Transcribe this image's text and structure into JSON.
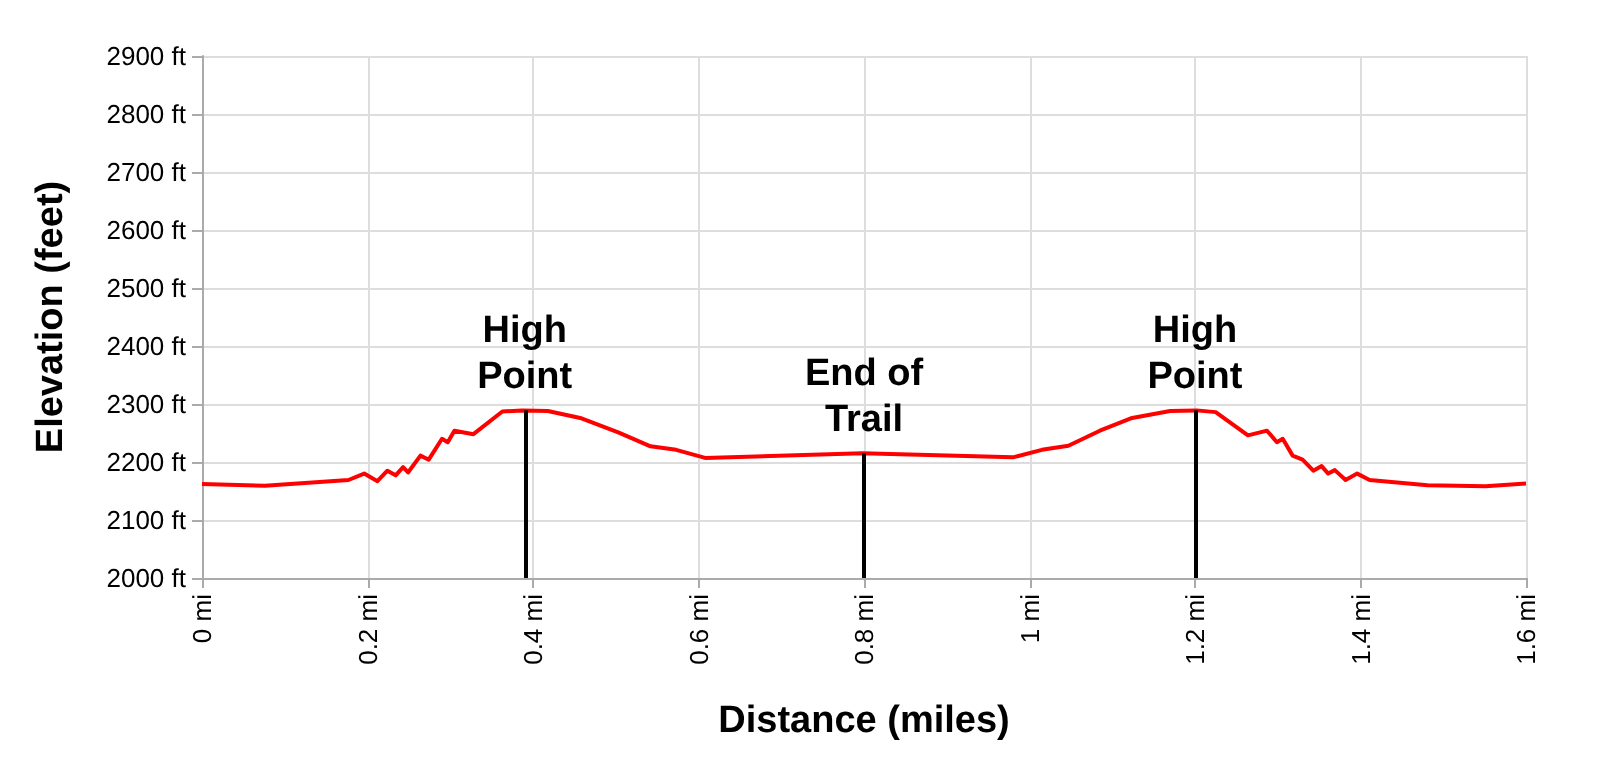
{
  "chart_data": {
    "type": "line",
    "xlabel": "Distance (miles)",
    "ylabel": "Elevation (feet)",
    "xlim": [
      0,
      1.6
    ],
    "ylim": [
      2000,
      2900
    ],
    "xticks": [
      {
        "value": 0,
        "label": "0 mi"
      },
      {
        "value": 0.2,
        "label": "0.2 mi"
      },
      {
        "value": 0.4,
        "label": "0.4 mi"
      },
      {
        "value": 0.6,
        "label": "0.6 mi"
      },
      {
        "value": 0.8,
        "label": "0.8 mi"
      },
      {
        "value": 1,
        "label": "1 mi"
      },
      {
        "value": 1.2,
        "label": "1.2 mi"
      },
      {
        "value": 1.4,
        "label": "1.4 mi"
      },
      {
        "value": 1.6,
        "label": "1.6 mi"
      }
    ],
    "yticks": [
      {
        "value": 2000,
        "label": "2000 ft"
      },
      {
        "value": 2100,
        "label": "2100 ft"
      },
      {
        "value": 2200,
        "label": "2200 ft"
      },
      {
        "value": 2300,
        "label": "2300 ft"
      },
      {
        "value": 2400,
        "label": "2400 ft"
      },
      {
        "value": 2500,
        "label": "2500 ft"
      },
      {
        "value": 2600,
        "label": "2600 ft"
      },
      {
        "value": 2700,
        "label": "2700 ft"
      },
      {
        "value": 2800,
        "label": "2800 ft"
      },
      {
        "value": 2900,
        "label": "2900 ft"
      }
    ],
    "grid": true,
    "marker": "none",
    "line_style": "solid",
    "x": [
      0,
      0.076,
      0.177,
      0.196,
      0.212,
      0.224,
      0.234,
      0.243,
      0.249,
      0.264,
      0.274,
      0.29,
      0.297,
      0.305,
      0.328,
      0.363,
      0.387,
      0.418,
      0.457,
      0.503,
      0.542,
      0.573,
      0.608,
      0.798,
      0.98,
      1.015,
      1.047,
      1.085,
      1.124,
      1.17,
      1.202,
      1.225,
      1.264,
      1.287,
      1.299,
      1.306,
      1.318,
      1.33,
      1.343,
      1.353,
      1.361,
      1.369,
      1.382,
      1.396,
      1.411,
      1.481,
      1.551,
      1.6
    ],
    "series": [
      {
        "color": "#ff0000",
        "values": [
          2162,
          2159,
          2169,
          2180,
          2167,
          2185,
          2177,
          2191,
          2182,
          2211,
          2204,
          2240,
          2234,
          2254,
          2248,
          2287,
          2289,
          2288,
          2276,
          2251,
          2227,
          2221,
          2207,
          2215,
          2208,
          2221,
          2228,
          2254,
          2276,
          2288,
          2289,
          2286,
          2246,
          2254,
          2234,
          2240,
          2211,
          2204,
          2185,
          2193,
          2180,
          2186,
          2169,
          2180,
          2169,
          2160,
          2158,
          2163
        ]
      }
    ],
    "annotations": [
      {
        "text": "High\nPoint",
        "x": 0.39,
        "y": 2289
      },
      {
        "text": "End of\nTrail",
        "x": 0.8,
        "y": 2215
      },
      {
        "text": "High\nPoint",
        "x": 1.2,
        "y": 2289
      }
    ]
  }
}
